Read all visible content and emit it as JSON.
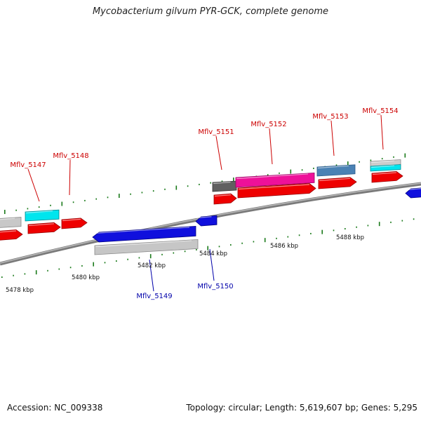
{
  "title": "Mycobacterium gilvum PYR-GCK, complete genome",
  "footer": {
    "accession": "Accession: NC_009338",
    "summary": "Topology: circular; Length: 5,619,607 bp; Genes: 5,295"
  },
  "colors": {
    "forward_label": "#cc0000",
    "reverse_label": "#0000aa",
    "tick": "#1a7a1a",
    "backbone": "#808080"
  },
  "kbp_labels": [
    "5478 kbp",
    "5480 kbp",
    "5482 kbp",
    "5484 kbp",
    "5486 kbp",
    "5488 kbp"
  ],
  "genes": [
    {
      "name": "Mflv_5147",
      "strand": "forward"
    },
    {
      "name": "Mflv_5148",
      "strand": "forward"
    },
    {
      "name": "Mflv_5149",
      "strand": "reverse"
    },
    {
      "name": "Mflv_5150",
      "strand": "reverse"
    },
    {
      "name": "Mflv_5151",
      "strand": "forward"
    },
    {
      "name": "Mflv_5152",
      "strand": "forward"
    },
    {
      "name": "Mflv_5153",
      "strand": "forward"
    },
    {
      "name": "Mflv_5154",
      "strand": "forward"
    }
  ]
}
